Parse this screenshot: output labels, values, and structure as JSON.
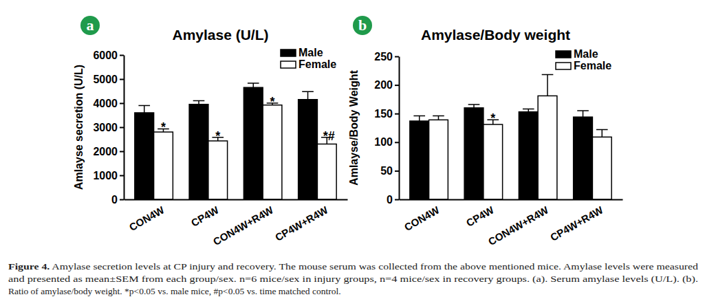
{
  "chart_data": [
    {
      "type": "bar",
      "panel": "a",
      "title": "Amylase (U/L)",
      "y_label": "Amlayse secretion (U/L)",
      "categories": [
        "CON4W",
        "CP4W",
        "CON4W+R4W",
        "CP4W+R4W"
      ],
      "series": [
        {
          "name": "Male",
          "color": "#000000",
          "values": [
            3600,
            3950,
            4650,
            4150
          ],
          "errors": [
            300,
            150,
            180,
            330
          ],
          "significance": [
            null,
            null,
            null,
            null
          ]
        },
        {
          "name": "Female",
          "color": "#ffffff",
          "values": [
            2800,
            2430,
            3920,
            2300
          ],
          "errors": [
            130,
            150,
            80,
            280
          ],
          "significance": [
            "*",
            "*",
            "*",
            "*#"
          ]
        }
      ],
      "ylim": [
        0,
        6000
      ],
      "yticks": [
        0,
        1000,
        2000,
        3000,
        4000,
        5000,
        6000
      ],
      "legend": "top-right"
    },
    {
      "type": "bar",
      "panel": "b",
      "title": "Amylase/Body weight",
      "y_label": "Amlayse/Body Weight",
      "categories": [
        "CON4W",
        "CP4W",
        "CON4W+R4W",
        "CP4W+R4W"
      ],
      "series": [
        {
          "name": "Male",
          "color": "#000000",
          "values": [
            137,
            160,
            153,
            144
          ],
          "errors": [
            9,
            6,
            5,
            11
          ],
          "significance": [
            null,
            null,
            null,
            null
          ]
        },
        {
          "name": "Female",
          "color": "#ffffff",
          "values": [
            139,
            131,
            181,
            109
          ],
          "errors": [
            7,
            8,
            37,
            13
          ],
          "significance": [
            null,
            "*",
            null,
            null
          ]
        }
      ],
      "ylim": [
        0,
        250
      ],
      "yticks": [
        0,
        50,
        100,
        150,
        200,
        250
      ],
      "legend": "top-right"
    }
  ],
  "caption": {
    "label": "Figure 4.",
    "lines": [
      "Amylase secretion levels at CP injury and recovery. The mouse serum was collected from the above mentioned mice. Amylase levels were measured",
      "and presented as mean±SEM from each group/sex. n=6 mice/sex in injury groups, n=4 mice/sex in recovery groups. (a). Serum amylase levels (U/L). (b).",
      "Ratio of amylase/body weight. *p<0.05 vs. male mice, #p<0.05 vs. time matched control."
    ]
  }
}
